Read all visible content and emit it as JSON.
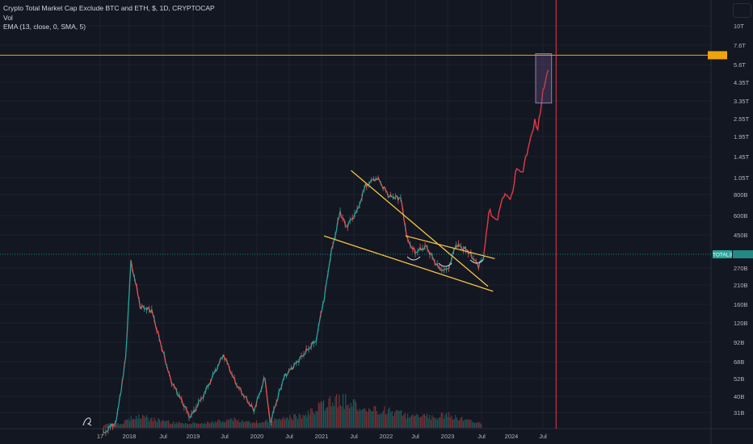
{
  "header": {
    "title": "Crypto Total Market Cap Exclude BTC and ETH, $, 1D, CRYPTOCAP",
    "vol": "Vol",
    "ema": "EMA (13, close, 0, SMA, 5)"
  },
  "colors": {
    "background": "#131722",
    "up": "#26a69a",
    "down": "#ef5350",
    "trendline": "#f5c242",
    "projection": "#e53946",
    "marker_line": "#e53946",
    "target_box": "#6c4f84",
    "hline": "#f0a30a"
  },
  "chart_data": {
    "type": "line",
    "scale": "log",
    "x_ticks": [
      "17",
      "2018",
      "Jul",
      "2019",
      "Jul",
      "2020",
      "Jul",
      "2021",
      "Jul",
      "2022",
      "Jul",
      "2023",
      "Jul",
      "2024",
      "Jul"
    ],
    "y_ticks": [
      "10T",
      "7.6T",
      "5.6T",
      "4.35T",
      "3.35T",
      "2.55T",
      "1.95T",
      "1.45T",
      "1.05T",
      "800B",
      "600B",
      "450B",
      "270B",
      "210B",
      "160B",
      "120B",
      "92B",
      "68B",
      "52B",
      "40B",
      "31B"
    ],
    "current_label": "TOTAL3",
    "price_tag": "",
    "level_tag": "",
    "series": [
      {
        "kind": "price",
        "x": [
          "2017-09-01",
          "2017-11-01",
          "2017-12-15",
          "2018-01-10",
          "2018-03-01",
          "2018-05-01",
          "2018-08-15",
          "2018-12-15",
          "2019-03-01",
          "2019-06-25",
          "2019-09-01",
          "2019-12-15",
          "2020-02-15",
          "2020-03-15",
          "2020-06-01",
          "2020-09-01",
          "2020-12-01",
          "2021-01-15",
          "2021-02-20",
          "2021-04-15",
          "2021-05-20",
          "2021-07-20",
          "2021-09-05",
          "2021-11-10",
          "2022-01-20",
          "2022-04-01",
          "2022-05-15",
          "2022-07-01",
          "2022-09-01",
          "2022-11-10",
          "2023-01-01",
          "2023-02-15",
          "2023-04-15",
          "2023-06-15",
          "2023-07-15"
        ],
        "y": [
          33,
          39,
          90,
          330,
          180,
          170,
          68,
          41,
          55,
          95,
          65,
          45,
          70,
          38,
          70,
          90,
          115,
          200,
          350,
          630,
          520,
          640,
          900,
          1000,
          780,
          760,
          430,
          370,
          400,
          300,
          290,
          410,
          380,
          310,
          350
        ]
      },
      {
        "kind": "projection",
        "x": [
          "2023-07-15",
          "2023-08-15",
          "2023-10-01",
          "2023-11-15",
          "2024-01-01",
          "2024-02-01",
          "2024-03-01",
          "2024-04-15",
          "2024-05-15",
          "2024-06-01",
          "2024-07-01",
          "2024-07-15",
          "2024-08-01"
        ],
        "y": [
          350,
          640,
          560,
          800,
          760,
          1150,
          1050,
          1600,
          2100,
          1900,
          3100,
          3600,
          4200
        ]
      }
    ],
    "volume_levels": [
      0.6,
      0.7,
      2.2,
      1.5,
      1.0,
      0.8,
      0.8,
      1.2,
      1.5,
      1.0,
      1.2,
      1.8,
      2.0,
      3.5,
      5.0,
      4.5,
      3.0,
      3.2,
      2.5,
      2.0,
      2.0,
      2.2,
      1.5,
      0.8
    ],
    "annotations": {
      "falling_wedge_upper": [
        [
          "2021-06-15",
          1100
        ],
        [
          "2023-08-10",
          235
        ]
      ],
      "falling_wedge_lower": [
        [
          "2021-01-15",
          460
        ],
        [
          "2023-09-10",
          220
        ]
      ],
      "resistance": [
        [
          "2022-05-01",
          460
        ],
        [
          "2023-09-20",
          340
        ]
      ],
      "target_zone": {
        "x": [
          "2024-05-20",
          "2024-08-20"
        ],
        "y": [
          2700,
          5200
        ]
      },
      "horizontal_level": 5100,
      "vertical_marker_date": "2024-09-15"
    }
  }
}
